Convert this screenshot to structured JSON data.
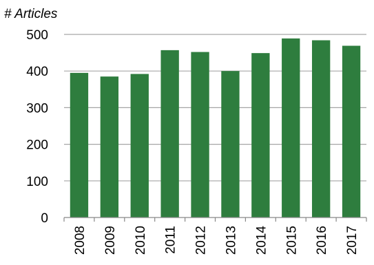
{
  "chart_data": {
    "type": "bar",
    "ylabel": "# Articles",
    "xlabel": "",
    "categories": [
      "2008",
      "2009",
      "2010",
      "2011",
      "2012",
      "2013",
      "2014",
      "2015",
      "2016",
      "2017"
    ],
    "values": [
      395,
      385,
      392,
      457,
      452,
      400,
      449,
      489,
      484,
      469
    ],
    "ylim": [
      0,
      500
    ],
    "yticks": [
      "0",
      "100",
      "200",
      "300",
      "400",
      "500"
    ],
    "grid": true,
    "legend": "none",
    "colors": {
      "bar": "#2e7d3e",
      "grid": "#a6a6a6",
      "axis": "#888888"
    }
  }
}
